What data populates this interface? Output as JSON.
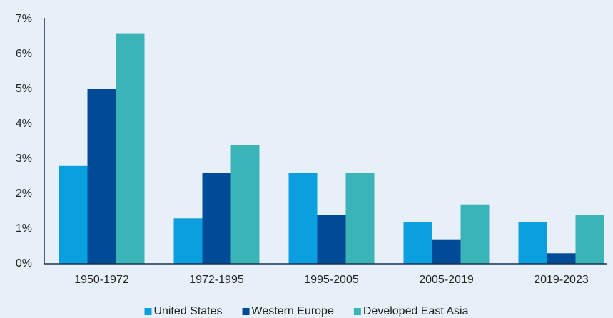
{
  "chart_data": {
    "type": "bar",
    "categories": [
      "1950-1972",
      "1972-1995",
      "1995-2005",
      "2005-2019",
      "2019-2023"
    ],
    "series": [
      {
        "name": "United States",
        "color": "#0aa0e0",
        "values": [
          2.8,
          1.3,
          2.6,
          1.2,
          1.2
        ]
      },
      {
        "name": "Western Europe",
        "color": "#004b98",
        "values": [
          5.0,
          2.6,
          1.4,
          0.7,
          0.3
        ]
      },
      {
        "name": "Developed East Asia",
        "color": "#3bb4b8",
        "values": [
          6.6,
          3.4,
          2.6,
          1.7,
          1.4
        ]
      }
    ],
    "ylim": [
      0,
      7
    ],
    "yticks": [
      {
        "value": 0,
        "label": "0%"
      },
      {
        "value": 1,
        "label": "1%"
      },
      {
        "value": 2,
        "label": "2%"
      },
      {
        "value": 3,
        "label": "3%"
      },
      {
        "value": 4,
        "label": "4%"
      },
      {
        "value": 5,
        "label": "5%"
      },
      {
        "value": 6,
        "label": "6%"
      },
      {
        "value": 7,
        "label": "7%"
      }
    ],
    "grid": false,
    "legend": "bottom"
  }
}
